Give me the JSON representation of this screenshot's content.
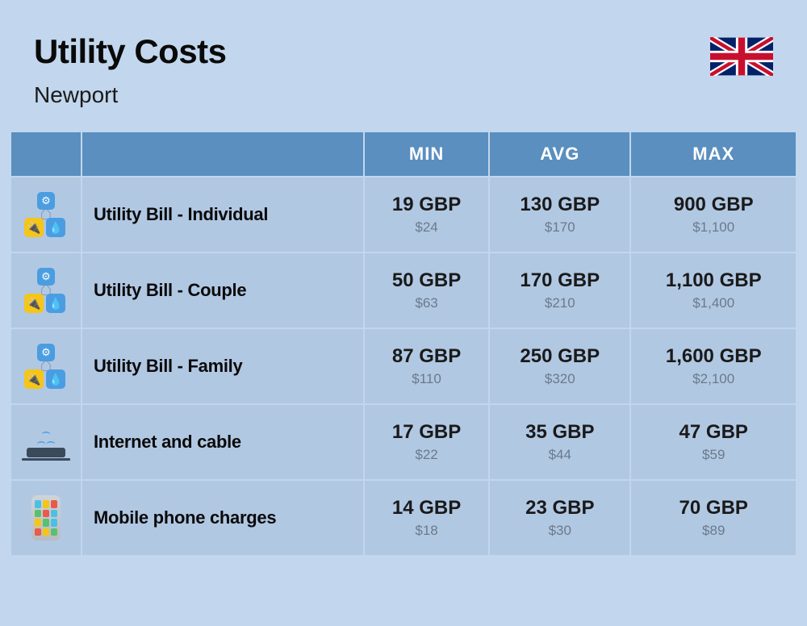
{
  "header": {
    "title": "Utility Costs",
    "subtitle": "Newport",
    "flag": "uk"
  },
  "columns": {
    "min": "MIN",
    "avg": "AVG",
    "max": "MAX"
  },
  "colors": {
    "page_bg": "#c2d7ed",
    "header_bg": "#5a8fbf",
    "header_text": "#ffffff",
    "row_bg": "#b1c8e3",
    "primary_text": "#1a1a1a",
    "secondary_text": "#6a7a8a",
    "title_text": "#0a0a0a"
  },
  "rows": [
    {
      "icon": "utility",
      "label": "Utility Bill - Individual",
      "min": {
        "primary": "19 GBP",
        "secondary": "$24"
      },
      "avg": {
        "primary": "130 GBP",
        "secondary": "$170"
      },
      "max": {
        "primary": "900 GBP",
        "secondary": "$1,100"
      }
    },
    {
      "icon": "utility",
      "label": "Utility Bill - Couple",
      "min": {
        "primary": "50 GBP",
        "secondary": "$63"
      },
      "avg": {
        "primary": "170 GBP",
        "secondary": "$210"
      },
      "max": {
        "primary": "1,100 GBP",
        "secondary": "$1,400"
      }
    },
    {
      "icon": "utility",
      "label": "Utility Bill - Family",
      "min": {
        "primary": "87 GBP",
        "secondary": "$110"
      },
      "avg": {
        "primary": "250 GBP",
        "secondary": "$320"
      },
      "max": {
        "primary": "1,600 GBP",
        "secondary": "$2,100"
      }
    },
    {
      "icon": "internet",
      "label": "Internet and cable",
      "min": {
        "primary": "17 GBP",
        "secondary": "$22"
      },
      "avg": {
        "primary": "35 GBP",
        "secondary": "$44"
      },
      "max": {
        "primary": "47 GBP",
        "secondary": "$59"
      }
    },
    {
      "icon": "mobile",
      "label": "Mobile phone charges",
      "min": {
        "primary": "14 GBP",
        "secondary": "$18"
      },
      "avg": {
        "primary": "23 GBP",
        "secondary": "$30"
      },
      "max": {
        "primary": "70 GBP",
        "secondary": "$89"
      }
    }
  ],
  "phone_app_colors": [
    "#4ac0e8",
    "#f5c518",
    "#e85a4a",
    "#5ac070",
    "#e85a4a",
    "#4ac0e8",
    "#f5c518",
    "#5ac070",
    "#4ac0e8",
    "#e85a4a",
    "#f5c518",
    "#5ac070"
  ]
}
